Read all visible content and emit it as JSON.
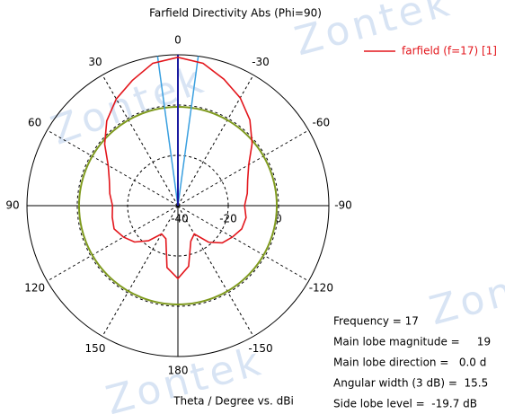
{
  "chart_data": {
    "type": "polar",
    "title": "Farfield Directivity Abs (Phi=90)",
    "axis_label": "Theta / Degree vs. dBi",
    "watermark": "Zontek",
    "series": [
      {
        "name": "farfield (f=17) [1]",
        "color": "#e3161c",
        "theta": [
          0,
          10,
          20,
          30,
          40,
          50,
          60,
          70,
          80,
          90,
          100,
          110,
          120,
          130,
          140,
          150,
          160,
          170,
          180,
          190,
          200,
          210,
          220,
          230,
          240,
          250,
          260,
          270,
          280,
          290,
          300,
          310,
          320,
          330,
          340,
          350
        ],
        "values": [
          19,
          17.5,
          13,
          9,
          4,
          -2,
          -8,
          -11,
          -12.5,
          -14,
          -13.5,
          -13,
          -15,
          -17.5,
          -21.8,
          -27,
          -26,
          -15,
          -11,
          -15.5,
          -25,
          -27,
          -21,
          -17,
          -15,
          -13,
          -12.5,
          -13.5,
          -12,
          -10.5,
          -7.5,
          -1.5,
          4.5,
          9.5,
          13.5,
          17.5
        ]
      }
    ],
    "rlim": [
      -40,
      20
    ],
    "rticks": [
      -40,
      -20,
      0
    ],
    "thetaticks": [
      0,
      30,
      60,
      90,
      120,
      150,
      180,
      {
        "value": 210,
        "label": "-150"
      },
      {
        "value": 240,
        "label": "-120"
      },
      {
        "value": 270,
        "label": "-90"
      },
      {
        "value": 300,
        "label": "-60"
      },
      {
        "value": 330,
        "label": "-30"
      }
    ],
    "main_lobe_direction": 0,
    "beam_width_3db": 15.5,
    "side_lobe_level_circle": -0.7,
    "info": [
      "Frequency = 17",
      "Main lobe magnitude =     19",
      "Main lobe direction =   0.0 d",
      "Angular width (3 dB) =  15.5",
      "Side lobe level =  -19.7 dB"
    ]
  }
}
